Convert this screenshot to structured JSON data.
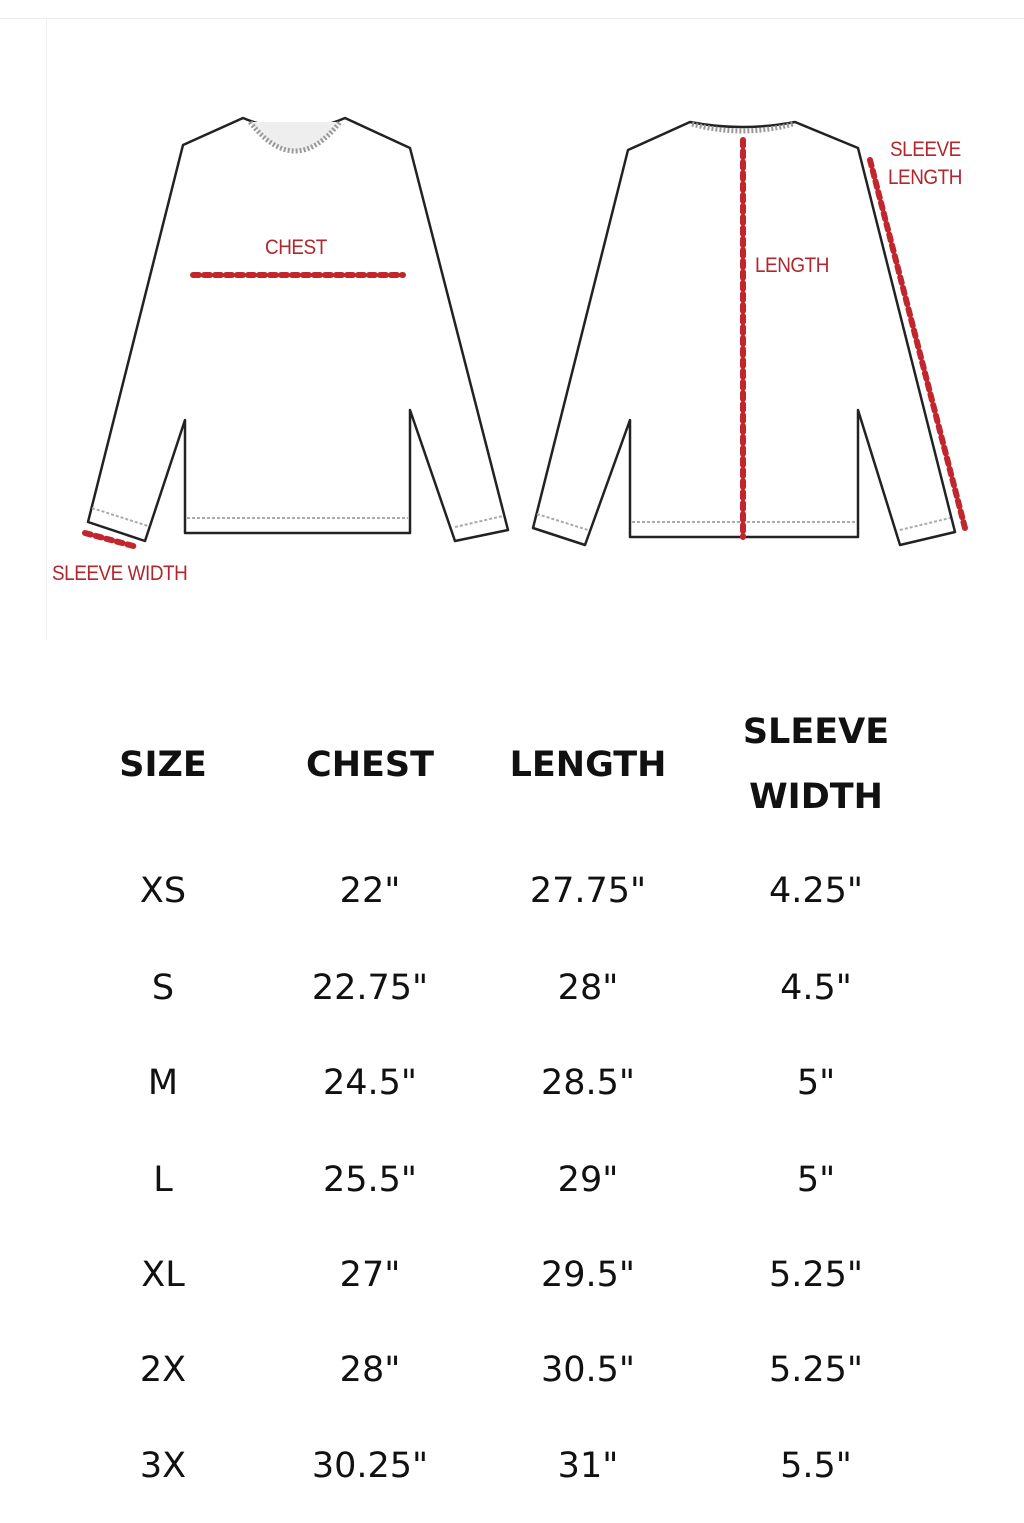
{
  "diagram": {
    "labels": {
      "chest": "CHEST",
      "length": "LENGTH",
      "sleeve_length": [
        "SLEEVE",
        "LENGTH"
      ],
      "sleeve_width": "SLEEVE WIDTH"
    },
    "measure_color": "#c0262c"
  },
  "table": {
    "headers": [
      "SIZE",
      "CHEST",
      "LENGTH",
      [
        "SLEEVE",
        "WIDTH"
      ]
    ],
    "rows": [
      [
        "XS",
        "22\"",
        "27.75\"",
        "4.25\""
      ],
      [
        "S",
        "22.75\"",
        "28\"",
        "4.5\""
      ],
      [
        "M",
        "24.5\"",
        "28.5\"",
        "5\""
      ],
      [
        "L",
        "25.5\"",
        "29\"",
        "5\""
      ],
      [
        "XL",
        "27\"",
        "29.5\"",
        "5.25\""
      ],
      [
        "2X",
        "28\"",
        "30.5\"",
        "5.25\""
      ],
      [
        "3X",
        "30.25\"",
        "31\"",
        "5.5\""
      ]
    ]
  }
}
